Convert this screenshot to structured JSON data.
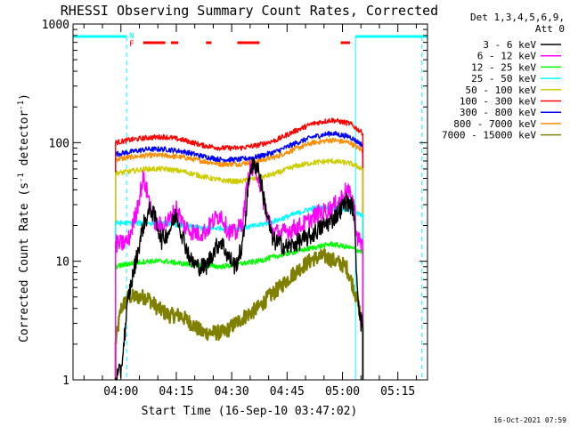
{
  "chart_data": {
    "type": "line",
    "title": "RHESSI Observing Summary Count Rates, Corrected",
    "xlabel": "Start Time (16-Sep-10 03:47:02)",
    "ylabel_main": "Corrected Count Rate (s",
    "ylabel_sup1": "-1",
    "ylabel_mid": " detector",
    "ylabel_sup2": "-1",
    "ylabel_end": ")",
    "y_scale": "log",
    "ylim": [
      1,
      1000
    ],
    "x_unit": "minutes after 03:47:02",
    "xlim": [
      0,
      96
    ],
    "x_ticks": [
      {
        "label": "04:00",
        "t": 12.97
      },
      {
        "label": "04:15",
        "t": 27.97
      },
      {
        "label": "04:30",
        "t": 42.97
      },
      {
        "label": "04:45",
        "t": 57.97
      },
      {
        "label": "05:00",
        "t": 72.97
      },
      {
        "label": "05:15",
        "t": 87.97
      }
    ],
    "y_ticks": [
      {
        "label": "1",
        "v": 1
      },
      {
        "label": "10",
        "v": 10
      },
      {
        "label": "100",
        "v": 100
      },
      {
        "label": "1000",
        "v": 1000
      }
    ],
    "legend_header": [
      "Det 1,3,4,5,6,9,",
      "Att 0"
    ],
    "legend_position": "outside-right",
    "timestamp": "16-Oct-2021 07:59",
    "flags": {
      "n_label": "N",
      "f_label": "F",
      "flag_color": "#ff0000",
      "night_color": "#00ffff",
      "night_intervals": [
        [
          0,
          14.5
        ],
        [
          76.5,
          96
        ]
      ],
      "flare_intervals": [
        [
          19,
          25
        ],
        [
          26.5,
          28.5
        ],
        [
          36,
          37.5
        ],
        [
          44.5,
          50.5
        ],
        [
          72.5,
          75
        ]
      ]
    },
    "data_window": [
      11.5,
      78.5
    ],
    "series": [
      {
        "name": "3 - 6 keV",
        "color": "#000000",
        "x": [
          11.5,
          13,
          15,
          17,
          19,
          21,
          22.5,
          24,
          26,
          28,
          30,
          32,
          34,
          36,
          38,
          40,
          42,
          44,
          46,
          47,
          48,
          50,
          52,
          54,
          56,
          58,
          60,
          62,
          64,
          66,
          68,
          70,
          72,
          74,
          76,
          77,
          78,
          78.5
        ],
        "y": [
          1,
          1.2,
          5,
          10,
          20,
          28,
          22,
          15,
          18,
          25,
          15,
          10,
          9,
          9,
          12,
          15,
          11,
          9,
          14,
          30,
          62,
          65,
          30,
          15,
          14,
          13,
          14,
          15,
          16,
          18,
          20,
          22,
          26,
          32,
          28,
          6,
          3,
          3
        ]
      },
      {
        "name": "6 - 12 keV",
        "color": "#ff00ff",
        "x": [
          11.5,
          13,
          15,
          17,
          19,
          21,
          22.5,
          24,
          26,
          28,
          30,
          32,
          34,
          36,
          38,
          40,
          42,
          44,
          46,
          47,
          48,
          50,
          52,
          54,
          56,
          58,
          60,
          62,
          64,
          66,
          68,
          70,
          72,
          74,
          76,
          77,
          78,
          78.5
        ],
        "y": [
          14,
          14,
          15,
          25,
          50,
          30,
          20,
          20,
          22,
          28,
          20,
          18,
          17,
          18,
          22,
          25,
          18,
          17,
          22,
          40,
          60,
          55,
          28,
          18,
          17,
          18,
          19,
          20,
          22,
          25,
          26,
          28,
          32,
          40,
          32,
          16,
          14,
          14
        ]
      },
      {
        "name": "12 - 25 keV",
        "color": "#00ff00",
        "x": [
          11.5,
          15,
          20,
          25,
          30,
          35,
          40,
          45,
          50,
          55,
          60,
          65,
          70,
          75,
          78.5
        ],
        "y": [
          9,
          9.5,
          10,
          10,
          9.5,
          9.2,
          9,
          9.5,
          10,
          11,
          12,
          13,
          14,
          13,
          12
        ]
      },
      {
        "name": "25 - 50 keV",
        "color": "#00ffff",
        "x": [
          11.5,
          15,
          20,
          25,
          30,
          35,
          40,
          45,
          50,
          55,
          60,
          65,
          70,
          75,
          78.5
        ],
        "y": [
          21,
          21,
          21,
          21,
          20,
          19,
          19,
          19,
          20,
          22,
          25,
          28,
          28,
          27,
          24
        ]
      },
      {
        "name": "50 - 100 keV",
        "color": "#cccc00",
        "x": [
          11.5,
          15,
          20,
          25,
          30,
          35,
          40,
          45,
          50,
          55,
          60,
          65,
          70,
          75,
          78.5
        ],
        "y": [
          55,
          57,
          60,
          60,
          57,
          52,
          48,
          47,
          50,
          55,
          63,
          68,
          70,
          67,
          60
        ]
      },
      {
        "name": "100 - 300 keV",
        "color": "#ff0000",
        "x": [
          11.5,
          15,
          20,
          25,
          30,
          35,
          40,
          45,
          50,
          55,
          60,
          65,
          70,
          75,
          78.5
        ],
        "y": [
          100,
          105,
          110,
          112,
          105,
          95,
          90,
          90,
          95,
          105,
          125,
          145,
          155,
          145,
          120
        ]
      },
      {
        "name": "300 - 800 keV",
        "color": "#0000ff",
        "x": [
          11.5,
          15,
          20,
          25,
          30,
          35,
          40,
          45,
          50,
          55,
          60,
          65,
          70,
          75,
          78.5
        ],
        "y": [
          80,
          83,
          88,
          88,
          84,
          77,
          72,
          72,
          76,
          84,
          98,
          112,
          120,
          112,
          95
        ]
      },
      {
        "name": "800 - 7000 keV",
        "color": "#ff8c00",
        "x": [
          11.5,
          15,
          20,
          25,
          30,
          35,
          40,
          45,
          50,
          55,
          60,
          65,
          70,
          75,
          78.5
        ],
        "y": [
          72,
          75,
          78,
          78,
          75,
          70,
          66,
          66,
          70,
          76,
          88,
          100,
          105,
          100,
          85
        ]
      },
      {
        "name": "7000 - 15000 keV",
        "color": "#808000",
        "x": [
          11.5,
          13,
          15,
          17,
          20,
          23,
          26,
          29,
          32,
          35,
          38,
          41,
          44,
          47,
          50,
          53,
          56,
          59,
          62,
          65,
          68,
          71,
          74,
          76,
          78.5
        ],
        "y": [
          2,
          4,
          5,
          5,
          5,
          4,
          3.5,
          3.5,
          3,
          2.5,
          2.5,
          2.5,
          3,
          3.5,
          4,
          5,
          6,
          7.5,
          9,
          10.5,
          11,
          10,
          9,
          6,
          3
        ]
      }
    ]
  }
}
